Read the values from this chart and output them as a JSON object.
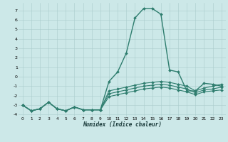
{
  "xlabel": "Humidex (Indice chaleur)",
  "xlim": [
    -0.5,
    23.5
  ],
  "ylim": [
    -4.2,
    7.8
  ],
  "yticks": [
    -4,
    -3,
    -2,
    -1,
    0,
    1,
    2,
    3,
    4,
    5,
    6,
    7
  ],
  "xticks": [
    0,
    1,
    2,
    3,
    4,
    5,
    6,
    7,
    8,
    9,
    10,
    11,
    12,
    13,
    14,
    15,
    16,
    17,
    18,
    19,
    20,
    21,
    22,
    23
  ],
  "background_color": "#cce8e8",
  "grid_color": "#aacccc",
  "line_color": "#2e7d6e",
  "series": [
    {
      "x": [
        0,
        1,
        2,
        3,
        4,
        5,
        6,
        7,
        8,
        9,
        10,
        11,
        12,
        13,
        14,
        15,
        16,
        17,
        18,
        19,
        20,
        21,
        22,
        23
      ],
      "y": [
        -3.0,
        -3.6,
        -3.4,
        -2.7,
        -3.4,
        -3.6,
        -3.2,
        -3.5,
        -3.5,
        -3.5,
        -0.5,
        0.5,
        2.5,
        6.2,
        7.2,
        7.2,
        6.6,
        0.7,
        0.5,
        -1.5,
        -1.5,
        -0.7,
        -0.8,
        -1.0
      ],
      "marker": "D",
      "markersize": 2.0,
      "linewidth": 1.0
    },
    {
      "x": [
        0,
        1,
        2,
        3,
        4,
        5,
        6,
        7,
        8,
        9,
        10,
        11,
        12,
        13,
        14,
        15,
        16,
        17,
        18,
        19,
        20,
        21,
        22,
        23
      ],
      "y": [
        -3.0,
        -3.6,
        -3.4,
        -2.7,
        -3.4,
        -3.6,
        -3.2,
        -3.5,
        -3.5,
        -3.5,
        -1.5,
        -1.3,
        -1.1,
        -0.9,
        -0.7,
        -0.6,
        -0.5,
        -0.6,
        -0.8,
        -1.0,
        -1.5,
        -1.2,
        -1.0,
        -0.8
      ],
      "marker": "D",
      "markersize": 2.0,
      "linewidth": 0.8
    },
    {
      "x": [
        0,
        1,
        2,
        3,
        4,
        5,
        6,
        7,
        8,
        9,
        10,
        11,
        12,
        13,
        14,
        15,
        16,
        17,
        18,
        19,
        20,
        21,
        22,
        23
      ],
      "y": [
        -3.0,
        -3.6,
        -3.4,
        -2.7,
        -3.4,
        -3.6,
        -3.2,
        -3.5,
        -3.5,
        -3.5,
        -1.8,
        -1.6,
        -1.4,
        -1.2,
        -1.0,
        -0.9,
        -0.8,
        -0.9,
        -1.1,
        -1.3,
        -1.7,
        -1.4,
        -1.3,
        -1.1
      ],
      "marker": "D",
      "markersize": 2.0,
      "linewidth": 0.8
    },
    {
      "x": [
        0,
        1,
        2,
        3,
        4,
        5,
        6,
        7,
        8,
        9,
        10,
        11,
        12,
        13,
        14,
        15,
        16,
        17,
        18,
        19,
        20,
        21,
        22,
        23
      ],
      "y": [
        -3.0,
        -3.6,
        -3.4,
        -2.7,
        -3.4,
        -3.6,
        -3.2,
        -3.5,
        -3.5,
        -3.5,
        -2.1,
        -1.9,
        -1.7,
        -1.5,
        -1.3,
        -1.2,
        -1.1,
        -1.2,
        -1.4,
        -1.6,
        -1.9,
        -1.6,
        -1.5,
        -1.4
      ],
      "marker": "D",
      "markersize": 2.0,
      "linewidth": 0.8
    }
  ]
}
